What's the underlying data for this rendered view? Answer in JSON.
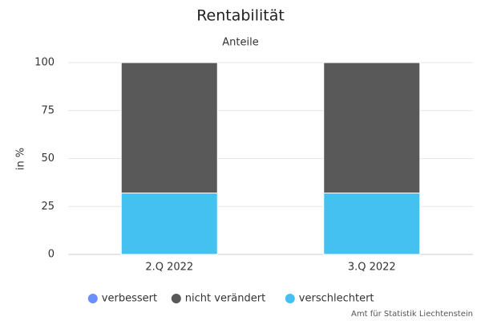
{
  "chart_data": {
    "type": "stacked_bar",
    "title": "Rentabilität",
    "subtitle": "Anteile",
    "y_label": "in %",
    "categories": [
      "2.Q 2022",
      "3.Q 2022"
    ],
    "series": [
      {
        "name": "verbessert",
        "color": "#6b8fff",
        "values": [
          0,
          0
        ]
      },
      {
        "name": "nicht verändert",
        "color": "#595959",
        "values": [
          68,
          68
        ]
      },
      {
        "name": "verschlechtert",
        "color": "#44c1f0",
        "values": [
          32,
          32
        ]
      }
    ],
    "ylim": [
      0,
      100
    ],
    "yticks": [
      0,
      25,
      50,
      75,
      100
    ],
    "grid": true,
    "credit": "Amt für Statistik Liechtenstein"
  }
}
